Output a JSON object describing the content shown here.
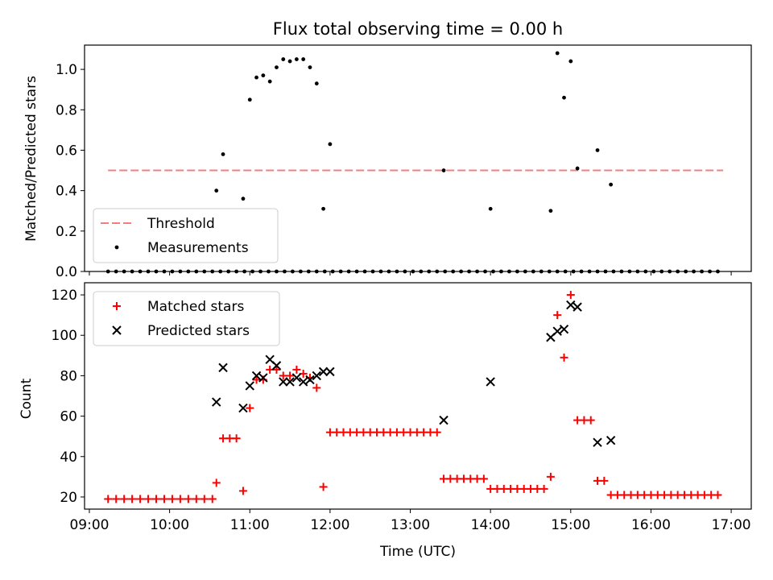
{
  "chart_data": [
    {
      "type": "scatter",
      "title": "Flux total observing time = 0.00 h",
      "ylabel": "Matched/Predicted stars",
      "xlabel": "",
      "xlim": [
        "09:00",
        "17:00"
      ],
      "ylim": [
        0,
        1.12
      ],
      "x_ticks": [
        "09:00",
        "10:00",
        "11:00",
        "12:00",
        "13:00",
        "14:00",
        "15:00",
        "16:00",
        "17:00"
      ],
      "y_ticks": [
        "0.0",
        "0.2",
        "0.4",
        "0.6",
        "0.8",
        "1.0"
      ],
      "legend_position": "lower-left",
      "threshold": {
        "name": "Threshold",
        "value": 0.5,
        "x_range": [
          "09:14",
          "16:54"
        ],
        "color": "#f08080",
        "style": "dashed"
      },
      "series": [
        {
          "name": "Measurements",
          "color": "#000000",
          "marker": "dot",
          "x": [
            "09:14",
            "09:20",
            "09:26",
            "09:32",
            "09:38",
            "09:44",
            "09:50",
            "09:56",
            "10:02",
            "10:08",
            "10:14",
            "10:20",
            "10:26",
            "10:32",
            "10:38",
            "10:44",
            "10:50",
            "10:56",
            "11:02",
            "11:08",
            "11:14",
            "11:20",
            "11:26",
            "11:32",
            "11:38",
            "11:44",
            "11:50",
            "11:56",
            "12:02",
            "12:08",
            "12:14",
            "12:20",
            "12:26",
            "12:32",
            "12:38",
            "12:44",
            "12:50",
            "12:56",
            "13:02",
            "13:08",
            "13:14",
            "13:20",
            "13:26",
            "13:32",
            "13:38",
            "13:44",
            "13:50",
            "13:56",
            "14:02",
            "14:08",
            "14:14",
            "14:20",
            "14:26",
            "14:32",
            "14:38",
            "14:44",
            "14:50",
            "14:56",
            "15:02",
            "15:08",
            "15:14",
            "15:20",
            "15:26",
            "15:32",
            "15:38",
            "15:44",
            "15:50",
            "15:56",
            "16:02",
            "16:08",
            "16:14",
            "16:20",
            "16:26",
            "16:32",
            "16:38",
            "16:44",
            "16:50",
            "10:35",
            "10:40",
            "10:55",
            "11:00",
            "11:05",
            "11:10",
            "11:15",
            "11:20",
            "11:25",
            "11:30",
            "11:35",
            "11:40",
            "11:45",
            "11:50",
            "11:55",
            "12:00",
            "13:25",
            "14:00",
            "14:45",
            "14:50",
            "14:55",
            "15:00",
            "15:05",
            "15:20",
            "15:30"
          ],
          "y": [
            0,
            0,
            0,
            0,
            0,
            0,
            0,
            0,
            0,
            0,
            0,
            0,
            0,
            0,
            0,
            0,
            0,
            0,
            0,
            0,
            0,
            0,
            0,
            0,
            0,
            0,
            0,
            0,
            0,
            0,
            0,
            0,
            0,
            0,
            0,
            0,
            0,
            0,
            0,
            0,
            0,
            0,
            0,
            0,
            0,
            0,
            0,
            0,
            0,
            0,
            0,
            0,
            0,
            0,
            0,
            0,
            0,
            0,
            0,
            0,
            0,
            0,
            0,
            0,
            0,
            0,
            0,
            0,
            0,
            0,
            0,
            0,
            0,
            0,
            0,
            0,
            0,
            0.4,
            0.58,
            0.36,
            0.85,
            0.96,
            0.97,
            0.94,
            1.01,
            1.05,
            1.04,
            1.05,
            1.05,
            1.01,
            0.93,
            0.31,
            0.63,
            0.5,
            0.31,
            0.3,
            1.08,
            0.86,
            1.04,
            0.51,
            0.6,
            0.43
          ]
        }
      ]
    },
    {
      "type": "scatter",
      "title": "",
      "xlabel": "Time (UTC)",
      "ylabel": "Count",
      "xlim": [
        "09:00",
        "17:00"
      ],
      "ylim": [
        14,
        126
      ],
      "x_ticks": [
        "09:00",
        "10:00",
        "11:00",
        "12:00",
        "13:00",
        "14:00",
        "15:00",
        "16:00",
        "17:00"
      ],
      "y_ticks": [
        "20",
        "40",
        "60",
        "80",
        "100",
        "120"
      ],
      "legend_position": "upper-left",
      "series": [
        {
          "name": "Matched stars",
          "color": "#ff0000",
          "marker": "plus",
          "x": [
            "09:14",
            "09:20",
            "09:26",
            "09:32",
            "09:38",
            "09:44",
            "09:50",
            "09:56",
            "10:02",
            "10:08",
            "10:14",
            "10:20",
            "10:26",
            "10:32",
            "10:35",
            "10:40",
            "10:45",
            "10:50",
            "10:55",
            "11:00",
            "11:05",
            "11:10",
            "11:15",
            "11:20",
            "11:25",
            "11:30",
            "11:35",
            "11:40",
            "11:45",
            "11:50",
            "11:55",
            "12:00",
            "12:05",
            "12:10",
            "12:15",
            "12:20",
            "12:25",
            "12:30",
            "12:35",
            "12:40",
            "12:45",
            "12:50",
            "12:55",
            "13:00",
            "13:05",
            "13:10",
            "13:15",
            "13:20",
            "13:25",
            "13:30",
            "13:35",
            "13:40",
            "13:45",
            "13:50",
            "13:55",
            "14:00",
            "14:05",
            "14:10",
            "14:15",
            "14:20",
            "14:25",
            "14:30",
            "14:35",
            "14:40",
            "14:45",
            "14:50",
            "14:55",
            "15:00",
            "15:05",
            "15:10",
            "15:15",
            "15:20",
            "15:25",
            "15:30",
            "15:35",
            "15:40",
            "15:45",
            "15:50",
            "15:55",
            "16:00",
            "16:05",
            "16:10",
            "16:15",
            "16:20",
            "16:25",
            "16:30",
            "16:35",
            "16:40",
            "16:45",
            "16:50"
          ],
          "y": [
            19,
            19,
            19,
            19,
            19,
            19,
            19,
            19,
            19,
            19,
            19,
            19,
            19,
            19,
            27,
            49,
            49,
            49,
            23,
            64,
            78,
            78,
            83,
            83,
            80,
            80,
            83,
            81,
            79,
            74,
            25,
            52,
            52,
            52,
            52,
            52,
            52,
            52,
            52,
            52,
            52,
            52,
            52,
            52,
            52,
            52,
            52,
            52,
            29,
            29,
            29,
            29,
            29,
            29,
            29,
            24,
            24,
            24,
            24,
            24,
            24,
            24,
            24,
            24,
            30,
            110,
            89,
            120,
            58,
            58,
            58,
            28,
            28,
            21,
            21,
            21,
            21,
            21,
            21,
            21,
            21,
            21,
            21,
            21,
            21,
            21,
            21,
            21,
            21,
            21
          ]
        },
        {
          "name": "Predicted stars",
          "color": "#000000",
          "marker": "x",
          "x": [
            "10:35",
            "10:40",
            "10:55",
            "11:00",
            "11:05",
            "11:10",
            "11:15",
            "11:20",
            "11:25",
            "11:30",
            "11:35",
            "11:40",
            "11:45",
            "11:50",
            "11:55",
            "12:00",
            "13:25",
            "14:00",
            "14:45",
            "14:50",
            "14:55",
            "15:00",
            "15:05",
            "15:20",
            "15:30"
          ],
          "y": [
            67,
            84,
            64,
            75,
            80,
            79,
            88,
            85,
            77,
            77,
            79,
            77,
            78,
            80,
            82,
            82,
            58,
            77,
            99,
            102,
            103,
            115,
            114,
            47,
            48
          ]
        }
      ]
    }
  ]
}
